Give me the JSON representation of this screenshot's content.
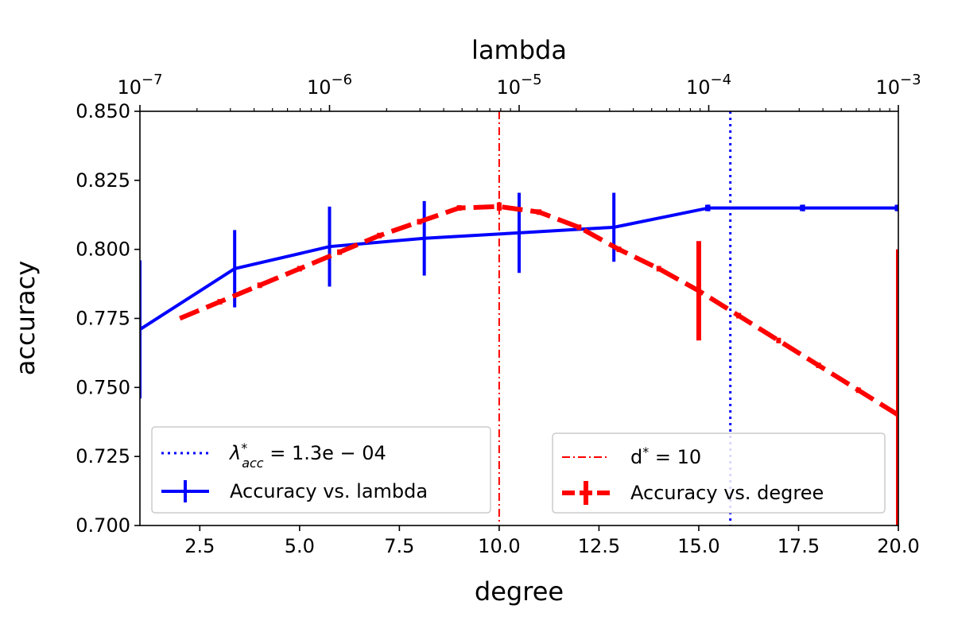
{
  "chart_data": {
    "type": "line",
    "xlabel": "degree",
    "ylabel": "accuracy",
    "top_xlabel": "lambda",
    "xlim": [
      1,
      20
    ],
    "ylim": [
      0.7,
      0.85
    ],
    "top_xlim_log10": [
      -7,
      -3
    ],
    "x_ticks": [
      "2.5",
      "5.0",
      "7.5",
      "10.0",
      "12.5",
      "15.0",
      "17.5",
      "20.0"
    ],
    "x_tick_values": [
      2.5,
      5.0,
      7.5,
      10.0,
      12.5,
      15.0,
      17.5,
      20.0
    ],
    "y_ticks": [
      "0.700",
      "0.725",
      "0.750",
      "0.775",
      "0.800",
      "0.825",
      "0.850"
    ],
    "y_tick_values": [
      0.7,
      0.725,
      0.75,
      0.775,
      0.8,
      0.825,
      0.85
    ],
    "top_ticks": [
      {
        "base": "10",
        "exp": "−7",
        "value": 1e-07
      },
      {
        "base": "10",
        "exp": "−6",
        "value": 1e-06
      },
      {
        "base": "10",
        "exp": "−5",
        "value": 1e-05
      },
      {
        "base": "10",
        "exp": "−4",
        "value": 0.0001
      },
      {
        "base": "10",
        "exp": "−3",
        "value": 0.001
      }
    ],
    "series": [
      {
        "name": "Accuracy vs. lambda",
        "axis": "top",
        "color": "#0000ff",
        "style": "solid",
        "x": [
          1e-07,
          3.16e-07,
          1e-06,
          3.16e-06,
          1e-05,
          3.16e-05,
          0.0001,
          0.000316,
          0.001
        ],
        "y": [
          0.771,
          0.793,
          0.801,
          0.804,
          0.806,
          0.808,
          0.815,
          0.815,
          0.815
        ],
        "err": [
          0.025,
          0.014,
          0.0145,
          0.0135,
          0.0145,
          0.0125,
          0.0012,
          0.0012,
          0.0012
        ]
      },
      {
        "name": "Accuracy vs. degree",
        "axis": "bottom",
        "color": "#ff0000",
        "style": "dashed",
        "x": [
          2,
          3,
          4,
          5,
          6,
          7,
          8,
          9,
          10,
          11,
          12,
          13,
          14,
          15,
          16,
          17,
          18,
          19,
          20
        ],
        "y": [
          0.775,
          0.781,
          0.787,
          0.793,
          0.799,
          0.805,
          0.81,
          0.815,
          0.8155,
          0.8135,
          0.808,
          0.8,
          0.793,
          0.785,
          0.776,
          0.767,
          0.758,
          0.749,
          0.74
        ],
        "err": [
          0.0,
          0.001,
          0.001,
          0.001,
          0.001,
          0.001,
          0.001,
          0.001,
          0.0015,
          0.001,
          0.001,
          0.001,
          0.001,
          0.018,
          0.001,
          0.001,
          0.001,
          0.001,
          0.06
        ]
      }
    ],
    "reference_lines": [
      {
        "name": "lambda-star",
        "label": "λ*acc = 1.3e−04",
        "axis": "top",
        "value": 0.00013,
        "color": "#0000ff",
        "style": "dotted"
      },
      {
        "name": "degree-star",
        "label": "d* = 10",
        "axis": "bottom",
        "value": 10,
        "color": "#ff0000",
        "style": "dashdot"
      }
    ],
    "legends": [
      {
        "placement": "lower-left",
        "entries": [
          "λ*acc = 1.3e−04",
          "Accuracy vs. lambda"
        ]
      },
      {
        "placement": "lower-right",
        "entries": [
          "d* = 10",
          "Accuracy vs. degree"
        ]
      }
    ]
  },
  "legend_text": {
    "lambda_star_symbol": "λ",
    "lambda_star_sup": "*",
    "lambda_star_sub": "acc",
    "lambda_star_value": " = 1.3e − 04",
    "lambda_series": "Accuracy vs. lambda",
    "degree_star_d": "d",
    "degree_star_sup": "*",
    "degree_star_value": " = 10",
    "degree_series": "Accuracy vs. degree"
  }
}
